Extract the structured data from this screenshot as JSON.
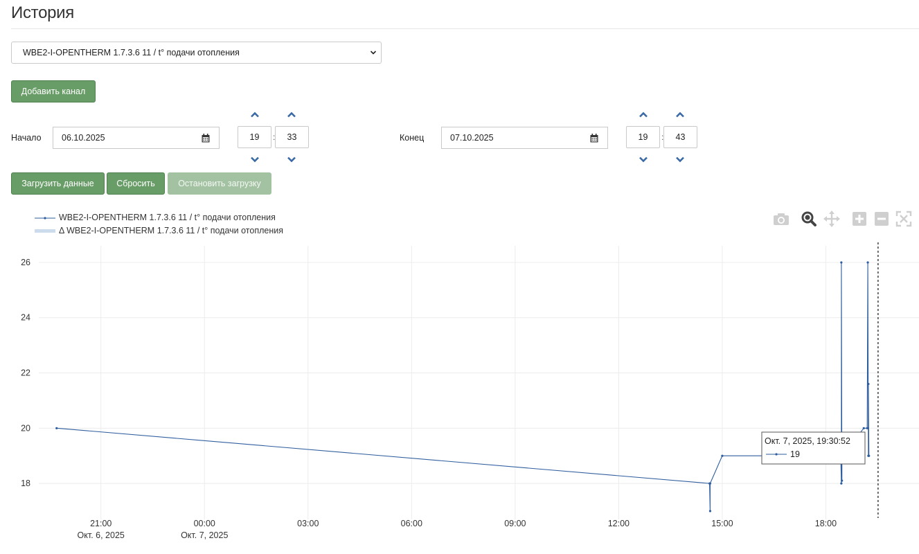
{
  "page": {
    "title": "История"
  },
  "channel_select": {
    "value": "WBE2-I-OPENTHERM 1.7.3.6 11 / t° подачи отопления"
  },
  "buttons": {
    "add_channel": "Добавить канал",
    "load": "Загрузить данные",
    "reset": "Сбросить",
    "stop": "Остановить загрузку"
  },
  "start": {
    "label": "Начало",
    "date": "06.10.2025",
    "hour": "19",
    "minute": "33"
  },
  "end": {
    "label": "Конец",
    "date": "07.10.2025",
    "hour": "19",
    "minute": "43"
  },
  "time_separator": ":",
  "legend": [
    {
      "name": "WBE2-I-OPENTHERM 1.7.3.6 11 / t° подачи отопления",
      "style": "line-markers"
    },
    {
      "name": "Δ WBE2-I-OPENTHERM 1.7.3.6 11 / t° подачи отопления",
      "style": "band"
    }
  ],
  "modebar_icons": [
    "camera-icon",
    "zoom-icon",
    "pan-icon",
    "zoom-in-icon",
    "zoom-out-icon",
    "autoscale-icon"
  ],
  "colors": {
    "accent": "#699d67",
    "series": "#2e5d9e",
    "band": "#cddcec",
    "arrow": "#3a6aa6"
  },
  "chart_data": {
    "type": "line",
    "x_unit": "datetime",
    "xlim": [
      "2025-10-06 19:12",
      "2025-10-07 20:42"
    ],
    "ylim": [
      16.7,
      26.6
    ],
    "grid": true,
    "legend_position": "top-left",
    "y_ticks": [
      18,
      20,
      22,
      24,
      26
    ],
    "x_ticks": [
      {
        "t": "2025-10-06 21:00",
        "label": "21:00",
        "sub": "Окт. 6, 2025"
      },
      {
        "t": "2025-10-07 00:00",
        "label": "00:00",
        "sub": "Окт. 7, 2025"
      },
      {
        "t": "2025-10-07 03:00",
        "label": "03:00",
        "sub": ""
      },
      {
        "t": "2025-10-07 06:00",
        "label": "06:00",
        "sub": ""
      },
      {
        "t": "2025-10-07 09:00",
        "label": "09:00",
        "sub": ""
      },
      {
        "t": "2025-10-07 12:00",
        "label": "12:00",
        "sub": ""
      },
      {
        "t": "2025-10-07 15:00",
        "label": "15:00",
        "sub": ""
      },
      {
        "t": "2025-10-07 18:00",
        "label": "18:00",
        "sub": ""
      }
    ],
    "series": [
      {
        "name": "WBE2-I-OPENTHERM 1.7.3.6 11 / t° подачи отопления",
        "x": [
          "2025-10-06 19:43",
          "2025-10-07 14:38",
          "2025-10-07 14:39",
          "2025-10-07 14:39",
          "2025-10-07 15:00",
          "2025-10-07 18:26",
          "2025-10-07 18:27",
          "2025-10-07 18:27",
          "2025-10-07 18:28",
          "2025-10-07 18:28",
          "2025-10-07 19:06",
          "2025-10-07 19:12",
          "2025-10-07 19:13",
          "2025-10-07 19:14",
          "2025-10-07 19:14",
          "2025-10-07 19:15"
        ],
        "y": [
          20,
          18,
          17,
          18,
          19,
          19,
          18,
          26,
          18.1,
          19,
          20,
          20,
          26,
          19,
          21.6,
          19
        ]
      }
    ],
    "hover": {
      "x": "2025-10-07 19:30:52",
      "title": "Окт. 7, 2025, 19:30:52",
      "value": "19"
    }
  }
}
